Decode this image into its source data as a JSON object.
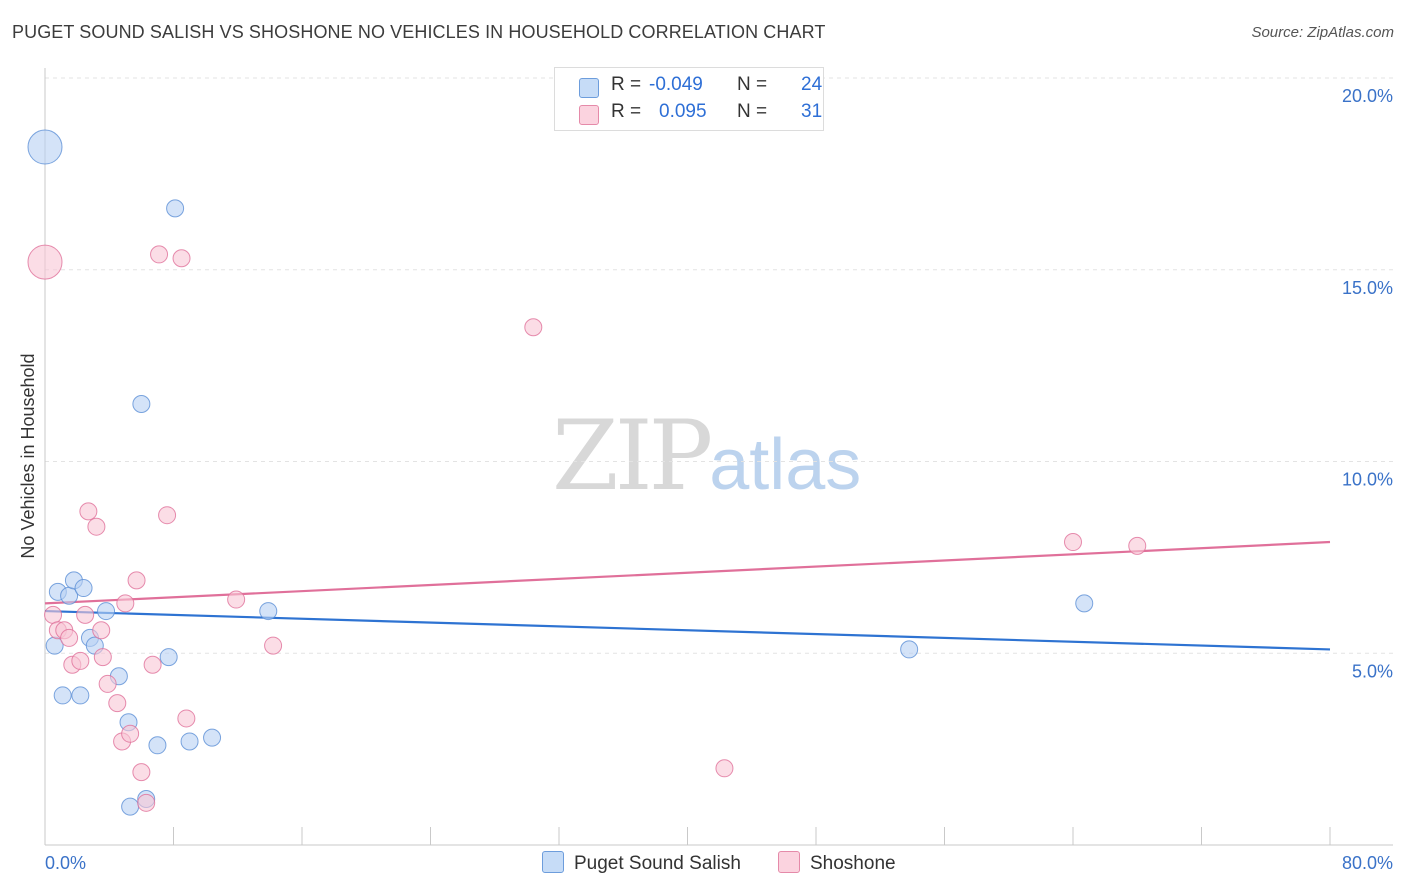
{
  "header": {
    "title": "PUGET SOUND SALISH VS SHOSHONE NO VEHICLES IN HOUSEHOLD CORRELATION CHART",
    "source": "Source: ZipAtlas.com"
  },
  "watermark": {
    "zip": "ZIP",
    "atlas": "atlas"
  },
  "legend": {
    "rows": [
      {
        "r_label": "R =",
        "r_value": "-0.049",
        "n_label": "N =",
        "n_value": "24",
        "color": "#a8c8f0"
      },
      {
        "r_label": "R =",
        "r_value": "0.095",
        "n_label": "N =",
        "n_value": "31",
        "color": "#f6b8cc"
      }
    ]
  },
  "bottom_legend": [
    {
      "label": "Puget Sound Salish",
      "color": "#b7d1f3"
    },
    {
      "label": "Shoshone",
      "color": "#f8c6d5"
    }
  ],
  "chart_data": {
    "type": "scatter",
    "ylabel": "No Vehicles in Household",
    "xlim": [
      0,
      80
    ],
    "ylim": [
      0,
      20
    ],
    "x_tick_labels": [
      "0.0%",
      "80.0%"
    ],
    "y_ticks": [
      5,
      10,
      15,
      20
    ],
    "y_tick_labels": [
      "5.0%",
      "10.0%",
      "15.0%",
      "20.0%"
    ],
    "grid": true,
    "series": [
      {
        "name": "Puget Sound Salish",
        "color": "#5b8fd6",
        "fill": "#b7d1f3",
        "trend": {
          "x": [
            0,
            80
          ],
          "y": [
            6.1,
            5.1
          ]
        },
        "points": [
          {
            "x": 0.0,
            "y": 18.2,
            "big": true
          },
          {
            "x": 8.1,
            "y": 16.6
          },
          {
            "x": 6.0,
            "y": 11.5
          },
          {
            "x": 0.6,
            "y": 5.2
          },
          {
            "x": 0.8,
            "y": 6.6
          },
          {
            "x": 1.5,
            "y": 6.5
          },
          {
            "x": 1.8,
            "y": 6.9
          },
          {
            "x": 2.4,
            "y": 6.7
          },
          {
            "x": 2.8,
            "y": 5.4
          },
          {
            "x": 3.1,
            "y": 5.2
          },
          {
            "x": 3.8,
            "y": 6.1
          },
          {
            "x": 1.1,
            "y": 3.9
          },
          {
            "x": 2.2,
            "y": 3.9
          },
          {
            "x": 4.6,
            "y": 4.4
          },
          {
            "x": 7.7,
            "y": 4.9
          },
          {
            "x": 5.2,
            "y": 3.2
          },
          {
            "x": 7.0,
            "y": 2.6
          },
          {
            "x": 9.0,
            "y": 2.7
          },
          {
            "x": 10.4,
            "y": 2.8
          },
          {
            "x": 5.3,
            "y": 1.0
          },
          {
            "x": 6.3,
            "y": 1.2
          },
          {
            "x": 13.9,
            "y": 6.1
          },
          {
            "x": 53.8,
            "y": 5.1
          },
          {
            "x": 64.7,
            "y": 6.3
          }
        ]
      },
      {
        "name": "Shoshone",
        "color": "#e0709a",
        "fill": "#f8c6d5",
        "trend": {
          "x": [
            0,
            80
          ],
          "y": [
            6.3,
            7.9
          ]
        },
        "points": [
          {
            "x": 0.0,
            "y": 15.2,
            "big": true
          },
          {
            "x": 7.1,
            "y": 15.4
          },
          {
            "x": 8.5,
            "y": 15.3
          },
          {
            "x": 30.4,
            "y": 13.5
          },
          {
            "x": 2.7,
            "y": 8.7
          },
          {
            "x": 3.2,
            "y": 8.3
          },
          {
            "x": 7.6,
            "y": 8.6
          },
          {
            "x": 5.7,
            "y": 6.9
          },
          {
            "x": 5.0,
            "y": 6.3
          },
          {
            "x": 11.9,
            "y": 6.4
          },
          {
            "x": 0.5,
            "y": 6.0
          },
          {
            "x": 2.5,
            "y": 6.0
          },
          {
            "x": 0.8,
            "y": 5.6
          },
          {
            "x": 1.2,
            "y": 5.6
          },
          {
            "x": 1.5,
            "y": 5.4
          },
          {
            "x": 3.5,
            "y": 5.6
          },
          {
            "x": 3.6,
            "y": 4.9
          },
          {
            "x": 1.7,
            "y": 4.7
          },
          {
            "x": 2.2,
            "y": 4.8
          },
          {
            "x": 6.7,
            "y": 4.7
          },
          {
            "x": 14.2,
            "y": 5.2
          },
          {
            "x": 3.9,
            "y": 4.2
          },
          {
            "x": 4.5,
            "y": 3.7
          },
          {
            "x": 8.8,
            "y": 3.3
          },
          {
            "x": 4.8,
            "y": 2.7
          },
          {
            "x": 5.3,
            "y": 2.9
          },
          {
            "x": 6.0,
            "y": 1.9
          },
          {
            "x": 6.3,
            "y": 1.1
          },
          {
            "x": 42.3,
            "y": 2.0
          },
          {
            "x": 64.0,
            "y": 7.9
          },
          {
            "x": 68.0,
            "y": 7.8
          }
        ]
      }
    ]
  }
}
